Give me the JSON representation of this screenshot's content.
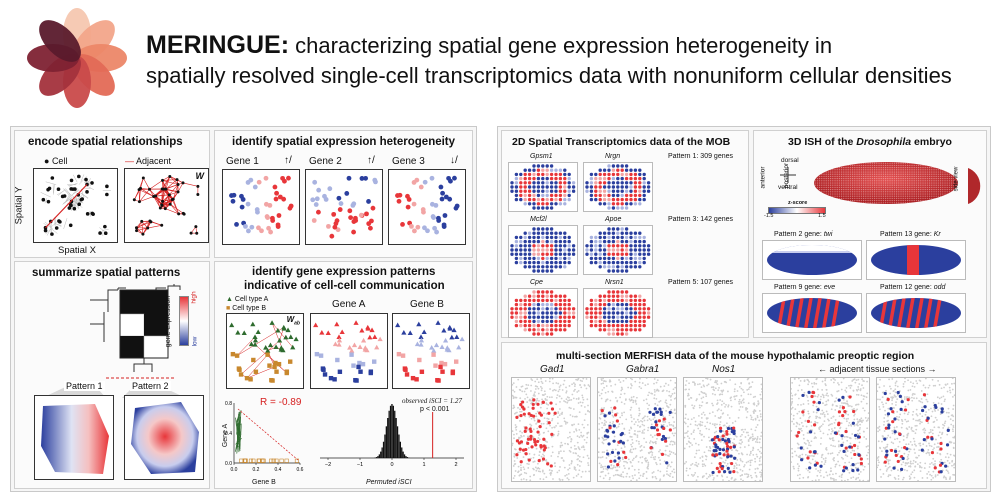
{
  "header": {
    "title_bold": "MERINGUE:",
    "title_line1": " characterizing spatial gene expression heterogeneity in",
    "title_line2": "spatially resolved single-cell transcriptomics data with nonuniform cellular densities",
    "logo": "meringue-swirl-logo"
  },
  "left": {
    "encode": {
      "title": "encode spatial relationships",
      "legend_cell": "Cell",
      "legend_adjacent": "Adjacent",
      "w_label": "W",
      "ylabel": "Spatial Y",
      "xlabel": "Spatial X"
    },
    "identify": {
      "title": "identify spatial expression heterogeneity",
      "genes": [
        {
          "label": "Gene 1",
          "arrow": "↑/"
        },
        {
          "label": "Gene 2",
          "arrow": "↑/"
        },
        {
          "label": "Gene 3",
          "arrow": "↓/"
        }
      ]
    },
    "summarize": {
      "title": "summarize spatial patterns",
      "colorbar_label": "gene expression",
      "high": "high",
      "low": "low",
      "pattern1": "Pattern 1",
      "pattern2": "Pattern 2"
    },
    "communication": {
      "title1": "identify gene expression patterns",
      "title2": "indicative of cell-cell communication",
      "legend_a": "Cell type A",
      "legend_b": "Cell type B",
      "w_label": "W",
      "w_sub": "ab",
      "gene_a": "Gene A",
      "gene_b": "Gene B",
      "r_label": "R = -0.89",
      "scatter_ylabel": "Gene A",
      "scatter_xlabel": "Gene B",
      "scatter_xticks": [
        "0.0",
        "0.2",
        "0.4",
        "0.6"
      ],
      "scatter_yticks": [
        "0.0",
        "0.4",
        "0.8"
      ],
      "observed": "observed iSCI = 1.27",
      "pvalue": "p < 0.001",
      "hist_xlabel": "Permuted iSCI",
      "hist_xticks": [
        "−2",
        "−1",
        "0",
        "1",
        "2"
      ]
    }
  },
  "right": {
    "mob": {
      "title": "2D Spatial Transcriptomics data of the MOB",
      "genes": [
        "Gpsm1",
        "Nrgn",
        "Mcf2l",
        "Apoe",
        "Cpe",
        "Nrsn1"
      ],
      "patterns": [
        "Pattern 1: 309 genes",
        "Pattern 3: 142 genes",
        "Pattern 5: 107 genes"
      ]
    },
    "ish": {
      "title_pre": "3D ISH of the ",
      "title_it": "Drosophila",
      "title_post": " embryo",
      "dorsal": "dorsal",
      "ventral": "ventral",
      "anterior": "anterior",
      "posterior": "posterior",
      "side_view": "side view",
      "zscore": "z-score",
      "zmin": "-1.5",
      "zmax": "1.5",
      "p2_pre": "Pattern 2 gene: ",
      "p2_gene": "twi",
      "p13_pre": "Pattern 13 gene: ",
      "p13_gene": "Kr",
      "p9_pre": "Pattern 9 gene: ",
      "p9_gene": "eve",
      "p12_pre": "Pattern 12 gene: ",
      "p12_gene": "odd"
    },
    "merfish": {
      "title": "multi-section MERFISH data of the mouse hypothalamic preoptic region",
      "genes": [
        "Gad1",
        "Gabra1",
        "Nos1"
      ],
      "adjacent": "←  adjacent tissue sections  →"
    }
  },
  "colors": {
    "red": "#e8363a",
    "blue": "#2b3f9e",
    "pink": "#f2a5a5",
    "lightblue": "#a9b3e0",
    "brown": "#c8882e",
    "green": "#2e6b2e"
  }
}
